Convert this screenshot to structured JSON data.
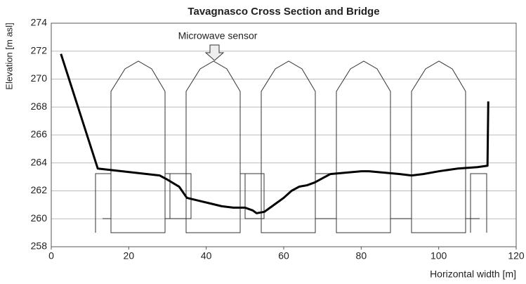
{
  "chart_data": {
    "type": "line",
    "title": "Tavagnasco Cross Section and Bridge",
    "x_label": "Horizontal width [m]",
    "y_label": "Elevation [m asl]",
    "annotation": "Microwave sensor",
    "xlim": [
      0,
      120
    ],
    "xticks": [
      0,
      20,
      40,
      60,
      80,
      100,
      120
    ],
    "ylim": [
      258,
      274
    ],
    "yticks": [
      258,
      260,
      262,
      264,
      266,
      268,
      270,
      272,
      274
    ],
    "grid": true,
    "series": [
      {
        "color": "#000000",
        "x": [
          2.5,
          12,
          28,
          30,
          33,
          35,
          38,
          41,
          44,
          47,
          50,
          52,
          53,
          55,
          57,
          60,
          62,
          64,
          66,
          68,
          70,
          72,
          76,
          80,
          82,
          86,
          90,
          93,
          96,
          100,
          105,
          110,
          112.6,
          112.8
        ],
        "values": [
          271.8,
          263.6,
          263.1,
          262.8,
          262.3,
          261.5,
          261.3,
          261.1,
          260.9,
          260.8,
          260.8,
          260.6,
          260.4,
          260.5,
          260.9,
          261.5,
          262,
          262.3,
          262.4,
          262.6,
          262.9,
          263.2,
          263.3,
          263.4,
          263.4,
          263.3,
          263.2,
          263.1,
          263.2,
          263.4,
          263.6,
          263.7,
          263.8,
          268.4
        ]
      }
    ]
  }
}
